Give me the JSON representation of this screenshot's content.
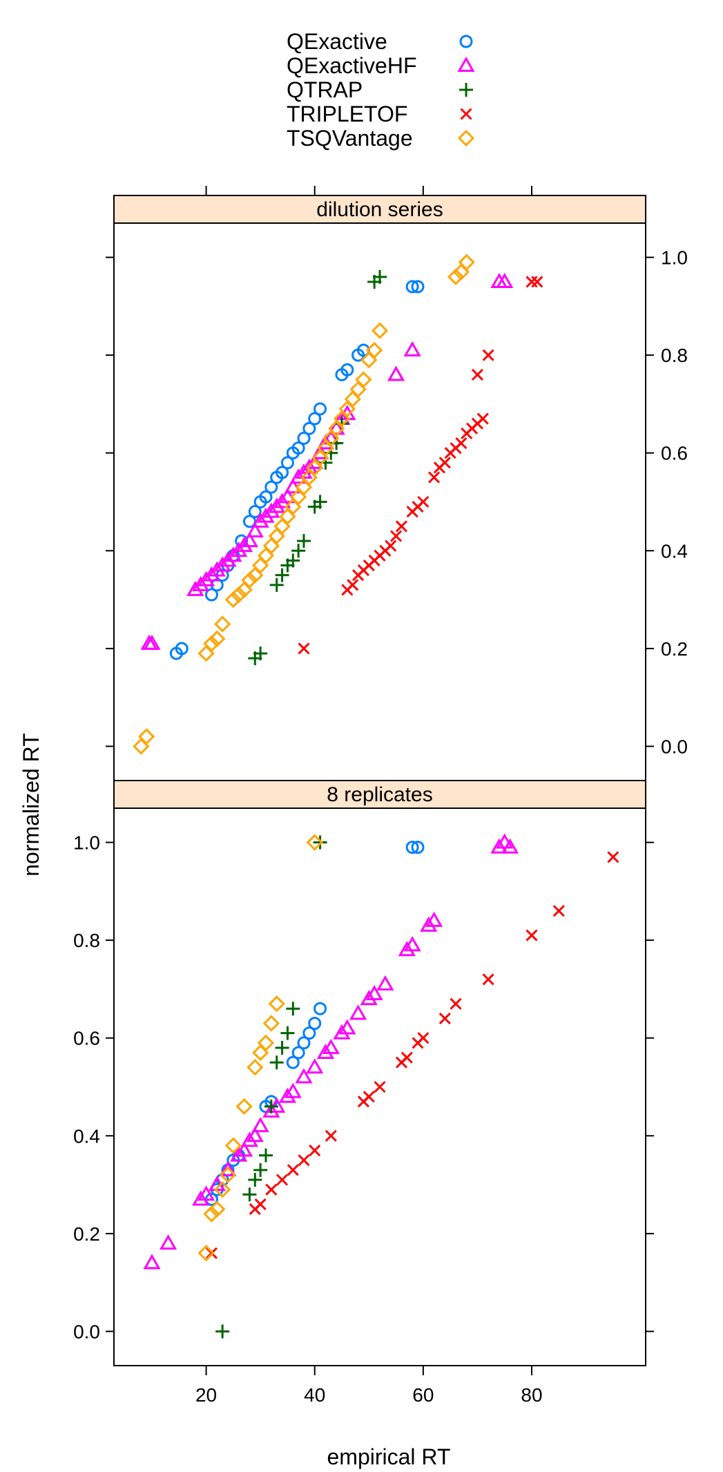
{
  "chart_data": {
    "type": "scatter",
    "xlabel": "empirical RT",
    "ylabel": "normalized RT",
    "x_ticks": [
      20,
      40,
      60,
      80
    ],
    "y_ticks": [
      0.0,
      0.2,
      0.4,
      0.6,
      0.8,
      1.0
    ],
    "xlim": [
      3,
      101
    ],
    "ylim": [
      -0.07,
      1.07
    ],
    "grid": false,
    "legend_position": "top",
    "legend": [
      {
        "name": "QExactive",
        "color": "#0080ff",
        "marker": "circle"
      },
      {
        "name": "QExactiveHF",
        "color": "#ff00ff",
        "marker": "triangle"
      },
      {
        "name": "QTRAP",
        "color": "#006400",
        "marker": "plus"
      },
      {
        "name": "TRIPLETOF",
        "color": "#ff0000",
        "marker": "cross"
      },
      {
        "name": "TSQVantage",
        "color": "#ffa500",
        "marker": "diamond"
      }
    ],
    "panels": [
      {
        "title": "dilution series",
        "series": [
          {
            "name": "QExactive",
            "points": [
              [
                14.5,
                0.19
              ],
              [
                15.5,
                0.2
              ],
              [
                21,
                0.31
              ],
              [
                22,
                0.33
              ],
              [
                23,
                0.35
              ],
              [
                24,
                0.37
              ],
              [
                25,
                0.39
              ],
              [
                26.5,
                0.42
              ],
              [
                28,
                0.46
              ],
              [
                29,
                0.48
              ],
              [
                30,
                0.5
              ],
              [
                31,
                0.51
              ],
              [
                32,
                0.53
              ],
              [
                33,
                0.55
              ],
              [
                34,
                0.56
              ],
              [
                35,
                0.58
              ],
              [
                36,
                0.6
              ],
              [
                37,
                0.61
              ],
              [
                38,
                0.63
              ],
              [
                39,
                0.65
              ],
              [
                40,
                0.67
              ],
              [
                41,
                0.69
              ],
              [
                45,
                0.76
              ],
              [
                46,
                0.77
              ],
              [
                48,
                0.8
              ],
              [
                49,
                0.81
              ],
              [
                58,
                0.94
              ],
              [
                59,
                0.94
              ]
            ]
          },
          {
            "name": "QExactiveHF",
            "points": [
              [
                9.5,
                0.21
              ],
              [
                10,
                0.21
              ],
              [
                18,
                0.32
              ],
              [
                19,
                0.33
              ],
              [
                20,
                0.34
              ],
              [
                21,
                0.35
              ],
              [
                22,
                0.36
              ],
              [
                23,
                0.37
              ],
              [
                24,
                0.38
              ],
              [
                25,
                0.39
              ],
              [
                26,
                0.4
              ],
              [
                27,
                0.41
              ],
              [
                28,
                0.42
              ],
              [
                29,
                0.44
              ],
              [
                30,
                0.46
              ],
              [
                31,
                0.47
              ],
              [
                32,
                0.48
              ],
              [
                33,
                0.49
              ],
              [
                34,
                0.5
              ],
              [
                35,
                0.51
              ],
              [
                36,
                0.53
              ],
              [
                37,
                0.55
              ],
              [
                38,
                0.56
              ],
              [
                39,
                0.57
              ],
              [
                40,
                0.58
              ],
              [
                41,
                0.6
              ],
              [
                42,
                0.62
              ],
              [
                43,
                0.63
              ],
              [
                44,
                0.65
              ],
              [
                45,
                0.67
              ],
              [
                46,
                0.68
              ],
              [
                55,
                0.76
              ],
              [
                58,
                0.81
              ],
              [
                74,
                0.95
              ],
              [
                75,
                0.95
              ]
            ]
          },
          {
            "name": "QTRAP",
            "points": [
              [
                29,
                0.18
              ],
              [
                30,
                0.19
              ],
              [
                33,
                0.33
              ],
              [
                34,
                0.35
              ],
              [
                35,
                0.37
              ],
              [
                36,
                0.38
              ],
              [
                37,
                0.4
              ],
              [
                38,
                0.42
              ],
              [
                40,
                0.49
              ],
              [
                41,
                0.5
              ],
              [
                42,
                0.58
              ],
              [
                43,
                0.6
              ],
              [
                44,
                0.62
              ],
              [
                45,
                0.66
              ],
              [
                51,
                0.95
              ],
              [
                52,
                0.96
              ]
            ]
          },
          {
            "name": "TRIPLETOF",
            "points": [
              [
                38,
                0.2
              ],
              [
                46,
                0.32
              ],
              [
                47,
                0.33
              ],
              [
                48,
                0.35
              ],
              [
                49,
                0.36
              ],
              [
                50,
                0.37
              ],
              [
                51,
                0.38
              ],
              [
                52,
                0.39
              ],
              [
                53,
                0.4
              ],
              [
                54,
                0.41
              ],
              [
                55,
                0.43
              ],
              [
                56,
                0.45
              ],
              [
                58,
                0.48
              ],
              [
                59,
                0.49
              ],
              [
                60,
                0.5
              ],
              [
                62,
                0.55
              ],
              [
                63,
                0.57
              ],
              [
                64,
                0.58
              ],
              [
                65,
                0.6
              ],
              [
                66,
                0.61
              ],
              [
                67,
                0.62
              ],
              [
                68,
                0.64
              ],
              [
                69,
                0.65
              ],
              [
                70,
                0.66
              ],
              [
                71,
                0.67
              ],
              [
                70,
                0.76
              ],
              [
                72,
                0.8
              ],
              [
                80,
                0.95
              ],
              [
                81,
                0.95
              ]
            ]
          },
          {
            "name": "TSQVantage",
            "points": [
              [
                8,
                0.0
              ],
              [
                9,
                0.02
              ],
              [
                20,
                0.19
              ],
              [
                21,
                0.21
              ],
              [
                22,
                0.22
              ],
              [
                23,
                0.25
              ],
              [
                25,
                0.3
              ],
              [
                26,
                0.31
              ],
              [
                27,
                0.32
              ],
              [
                28,
                0.34
              ],
              [
                29,
                0.35
              ],
              [
                30,
                0.37
              ],
              [
                31,
                0.39
              ],
              [
                32,
                0.41
              ],
              [
                33,
                0.43
              ],
              [
                34,
                0.45
              ],
              [
                35,
                0.47
              ],
              [
                36,
                0.49
              ],
              [
                37,
                0.51
              ],
              [
                38,
                0.53
              ],
              [
                39,
                0.55
              ],
              [
                40,
                0.57
              ],
              [
                41,
                0.59
              ],
              [
                42,
                0.61
              ],
              [
                43,
                0.63
              ],
              [
                44,
                0.65
              ],
              [
                45,
                0.67
              ],
              [
                46,
                0.69
              ],
              [
                47,
                0.71
              ],
              [
                48,
                0.73
              ],
              [
                49,
                0.75
              ],
              [
                50,
                0.79
              ],
              [
                51,
                0.81
              ],
              [
                52,
                0.85
              ],
              [
                66,
                0.96
              ],
              [
                67,
                0.97
              ],
              [
                68,
                0.99
              ]
            ]
          }
        ]
      },
      {
        "title": "8 replicates",
        "series": [
          {
            "name": "QExactive",
            "points": [
              [
                21,
                0.27
              ],
              [
                22,
                0.29
              ],
              [
                23,
                0.31
              ],
              [
                24,
                0.33
              ],
              [
                25,
                0.35
              ],
              [
                26,
                0.36
              ],
              [
                31,
                0.46
              ],
              [
                32,
                0.47
              ],
              [
                36,
                0.55
              ],
              [
                37,
                0.57
              ],
              [
                38,
                0.59
              ],
              [
                39,
                0.61
              ],
              [
                40,
                0.63
              ],
              [
                41,
                0.66
              ],
              [
                58,
                0.99
              ],
              [
                59,
                0.99
              ]
            ]
          },
          {
            "name": "QExactiveHF",
            "points": [
              [
                10,
                0.14
              ],
              [
                13,
                0.18
              ],
              [
                19,
                0.27
              ],
              [
                20,
                0.28
              ],
              [
                22,
                0.3
              ],
              [
                24,
                0.33
              ],
              [
                26,
                0.36
              ],
              [
                27,
                0.37
              ],
              [
                28,
                0.39
              ],
              [
                29,
                0.4
              ],
              [
                30,
                0.42
              ],
              [
                32,
                0.45
              ],
              [
                33,
                0.46
              ],
              [
                35,
                0.48
              ],
              [
                36,
                0.49
              ],
              [
                38,
                0.52
              ],
              [
                40,
                0.54
              ],
              [
                42,
                0.57
              ],
              [
                43,
                0.58
              ],
              [
                45,
                0.61
              ],
              [
                46,
                0.62
              ],
              [
                48,
                0.65
              ],
              [
                50,
                0.68
              ],
              [
                51,
                0.69
              ],
              [
                53,
                0.71
              ],
              [
                57,
                0.78
              ],
              [
                58,
                0.79
              ],
              [
                61,
                0.83
              ],
              [
                62,
                0.84
              ],
              [
                74,
                0.99
              ],
              [
                75,
                1.0
              ],
              [
                76,
                0.99
              ]
            ]
          },
          {
            "name": "QTRAP",
            "points": [
              [
                23,
                0.0
              ],
              [
                28,
                0.28
              ],
              [
                29,
                0.31
              ],
              [
                30,
                0.33
              ],
              [
                31,
                0.36
              ],
              [
                32,
                0.46
              ],
              [
                33,
                0.55
              ],
              [
                34,
                0.58
              ],
              [
                35,
                0.61
              ],
              [
                36,
                0.66
              ],
              [
                41,
                1.0
              ]
            ]
          },
          {
            "name": "TRIPLETOF",
            "points": [
              [
                21,
                0.16
              ],
              [
                29,
                0.25
              ],
              [
                30,
                0.26
              ],
              [
                32,
                0.29
              ],
              [
                34,
                0.31
              ],
              [
                36,
                0.33
              ],
              [
                38,
                0.35
              ],
              [
                40,
                0.37
              ],
              [
                43,
                0.4
              ],
              [
                49,
                0.47
              ],
              [
                50,
                0.48
              ],
              [
                52,
                0.5
              ],
              [
                56,
                0.55
              ],
              [
                57,
                0.56
              ],
              [
                59,
                0.59
              ],
              [
                60,
                0.6
              ],
              [
                64,
                0.64
              ],
              [
                66,
                0.67
              ],
              [
                72,
                0.72
              ],
              [
                80,
                0.81
              ],
              [
                85,
                0.86
              ],
              [
                95,
                0.97
              ]
            ]
          },
          {
            "name": "TSQVantage",
            "points": [
              [
                20,
                0.16
              ],
              [
                21,
                0.24
              ],
              [
                22,
                0.25
              ],
              [
                23,
                0.29
              ],
              [
                24,
                0.32
              ],
              [
                25,
                0.38
              ],
              [
                27,
                0.46
              ],
              [
                29,
                0.54
              ],
              [
                30,
                0.57
              ],
              [
                31,
                0.59
              ],
              [
                32,
                0.63
              ],
              [
                33,
                0.67
              ],
              [
                40,
                1.0
              ]
            ]
          }
        ]
      }
    ]
  }
}
